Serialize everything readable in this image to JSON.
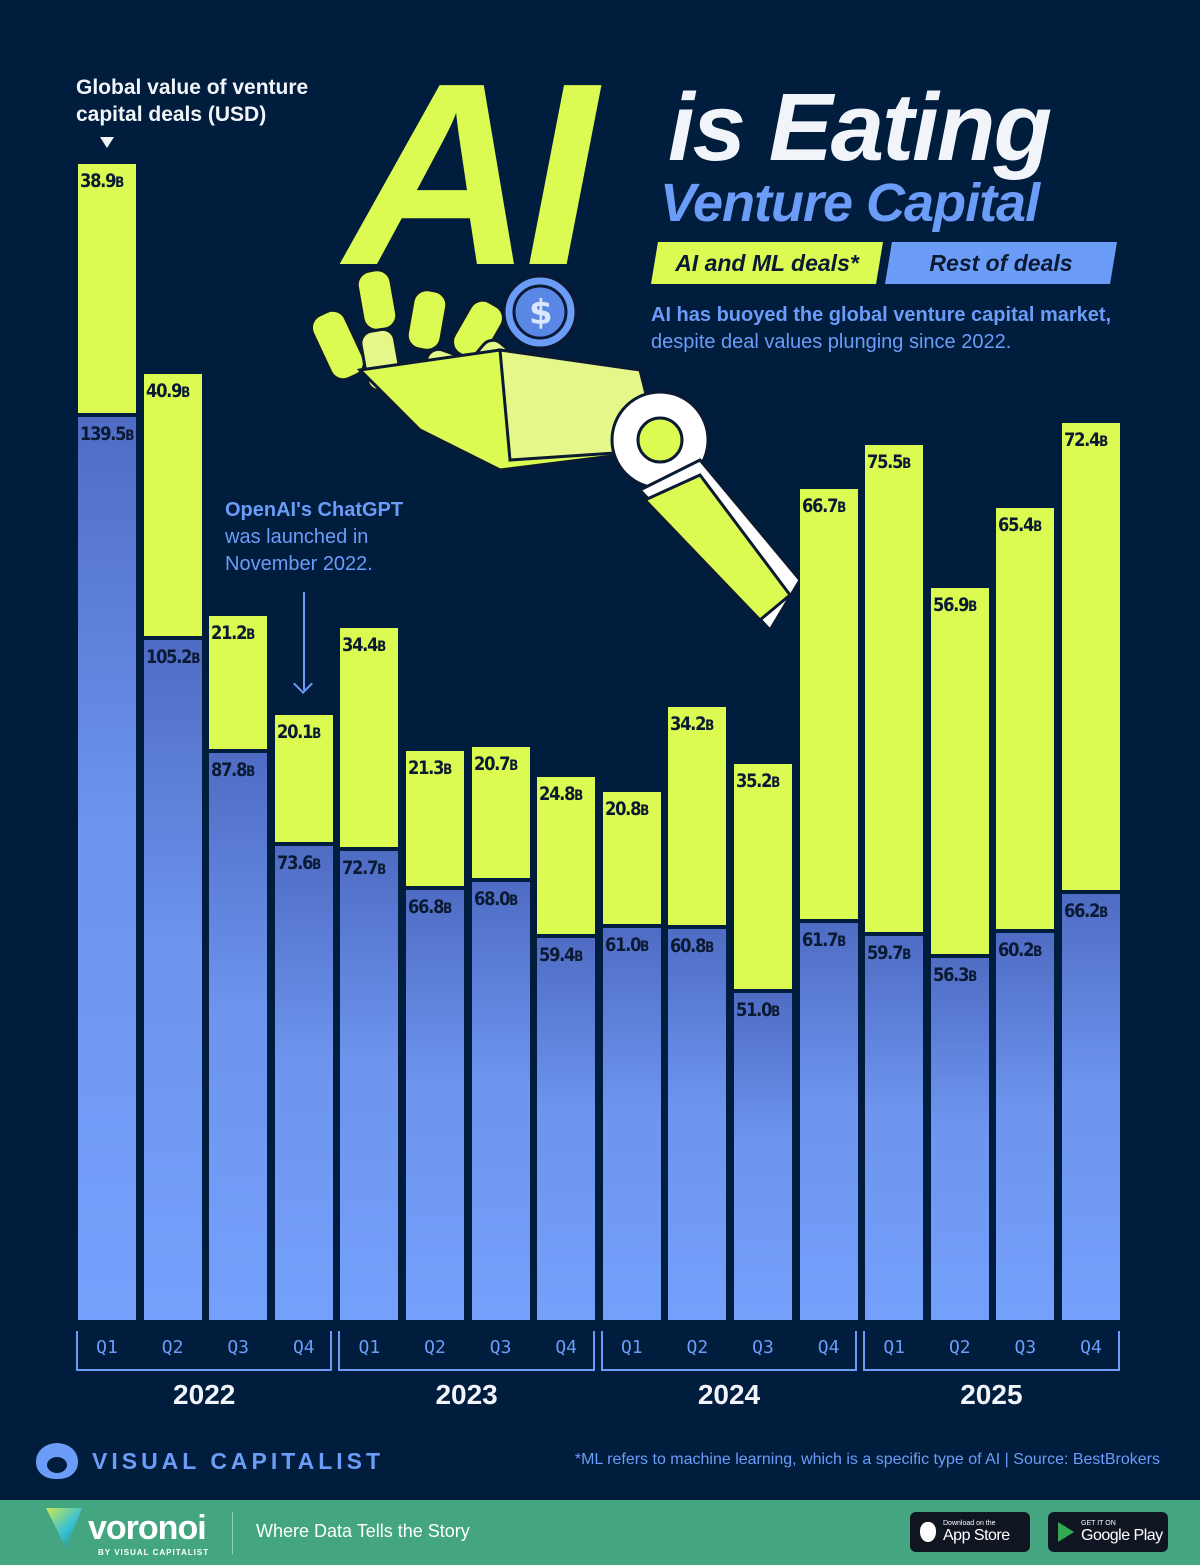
{
  "title": {
    "big": "AI",
    "line1": "is Eating",
    "line2": "Venture Capital"
  },
  "y_axis_label": "Global value of venture capital deals (USD)",
  "legend": {
    "ai": "AI and ML deals*",
    "rest": "Rest of deals"
  },
  "subtitle": {
    "bold": "AI has buoyed the global venture capital market,",
    "regular": " despite deal values plunging since 2022."
  },
  "annotation": {
    "bold": "OpenAI's ChatGPT",
    "regular": "was launched in November 2022."
  },
  "colors": {
    "background": "#001d3d",
    "ai": "#dcfb52",
    "rest": "#6b9cf7",
    "footer": "#43a681"
  },
  "chart_data": {
    "type": "bar",
    "stacked": true,
    "title": "AI is Eating Venture Capital",
    "ylabel": "Global value of venture capital deals (USD)",
    "unit": "B",
    "categories": [
      "2022 Q1",
      "2022 Q2",
      "2022 Q3",
      "2022 Q4",
      "2023 Q1",
      "2023 Q2",
      "2023 Q3",
      "2023 Q4",
      "2024 Q1",
      "2024 Q2",
      "2024 Q3",
      "2024 Q4",
      "2025 Q1",
      "2025 Q2",
      "2025 Q3",
      "2025 Q4"
    ],
    "quarters": [
      "Q1",
      "Q2",
      "Q3",
      "Q4",
      "Q1",
      "Q2",
      "Q3",
      "Q4",
      "Q1",
      "Q2",
      "Q3",
      "Q4",
      "Q1",
      "Q2",
      "Q3",
      "Q4"
    ],
    "years": [
      "2022",
      "2023",
      "2024",
      "2025"
    ],
    "series": [
      {
        "name": "Rest of deals",
        "values": [
          139.5,
          105.2,
          87.8,
          73.6,
          72.7,
          66.8,
          68.0,
          59.4,
          61.0,
          60.8,
          51.0,
          61.7,
          59.7,
          56.3,
          60.2,
          66.2
        ]
      },
      {
        "name": "AI and ML deals*",
        "values": [
          38.9,
          40.9,
          21.2,
          20.1,
          34.4,
          21.3,
          20.7,
          24.8,
          20.8,
          34.2,
          35.2,
          66.7,
          75.5,
          56.9,
          65.4,
          72.4
        ]
      }
    ],
    "legend_position": "top-right",
    "grid": false,
    "annotations": [
      "OpenAI's ChatGPT was launched in November 2022."
    ]
  },
  "footnote": "*ML refers to machine learning, which is a specific type of AI  |  Source: BestBrokers",
  "brand": {
    "name": "VISUAL CAPITALIST"
  },
  "footer": {
    "logo": "voronoi",
    "by": "BY VISUAL CAPITALIST",
    "tagline": "Where Data Tells the Story",
    "app_store": {
      "small": "Download on the",
      "big": "App Store"
    },
    "google_play": {
      "small": "GET IT ON",
      "big": "Google Play"
    }
  }
}
